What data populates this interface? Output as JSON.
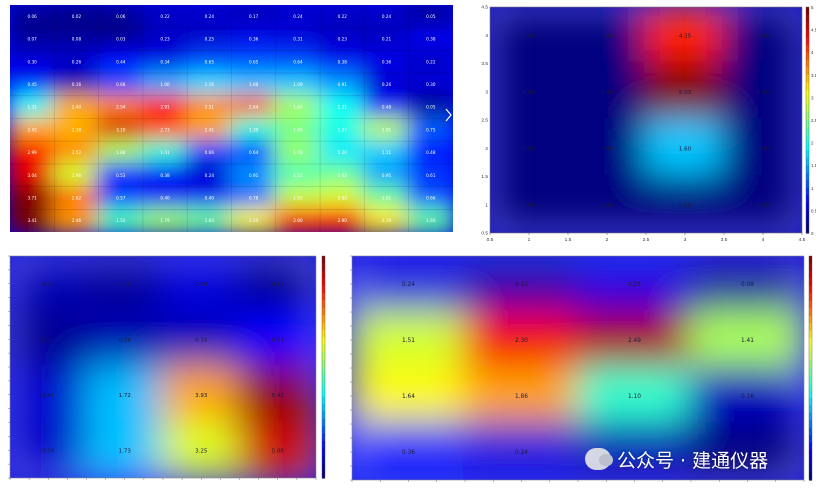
{
  "chart_data": [
    {
      "type": "heatmap",
      "id": "p1",
      "rows": [
        [
          "0.06",
          "0.02",
          "0.06",
          "0.22",
          "0.24",
          "0.17",
          "0.24",
          "0.22",
          "0.24",
          "0.05"
        ],
        [
          "0.07",
          "0.08",
          "0.03",
          "0.23",
          "0.25",
          "0.36",
          "0.31",
          "0.23",
          "0.21",
          "0.38"
        ],
        [
          "0.30",
          "0.26",
          "0.44",
          "0.34",
          "0.65",
          "0.65",
          "0.64",
          "0.38",
          "0.36",
          "0.22"
        ],
        [
          "0.45",
          "0.16",
          "0.68",
          "1.00",
          "1.16",
          "1.08",
          "1.09",
          "0.91",
          "0.26",
          "0.30"
        ],
        [
          "1.31",
          "2.40",
          "2.54",
          "2.91",
          "2.51",
          "2.64",
          "1.84",
          "1.31",
          "0.48",
          "0.05"
        ],
        [
          "2.42",
          "2.38",
          "3.10",
          "2.73",
          "2.41",
          "1.39",
          "1.66",
          "1.37",
          "1.91",
          "0.75"
        ],
        [
          "2.99",
          "2.52",
          "1.84",
          "1.41",
          "0.66",
          "0.64",
          "1.78",
          "1.20",
          "1.11",
          "0.48"
        ],
        [
          "3.04",
          "1.96",
          "0.53",
          "0.38",
          "0.24",
          "0.91",
          "1.52",
          "1.62",
          "0.95",
          "0.61"
        ],
        [
          "3.71",
          "2.62",
          "0.57",
          "0.40",
          "0.40",
          "0.78",
          "1.93",
          "2.00",
          "1.61",
          "0.66"
        ],
        [
          "3.41",
          "2.46",
          "1.52",
          "1.79",
          "1.64",
          "2.14",
          "2.80",
          "2.90",
          "2.19",
          "1.60"
        ]
      ]
    },
    {
      "type": "heatmap",
      "id": "p2",
      "x": [
        1,
        2,
        3,
        4
      ],
      "y": [
        1,
        2,
        3,
        4
      ],
      "values": [
        [
          0,
          0,
          4.25,
          0
        ],
        [
          0,
          0,
          5.03,
          0
        ],
        [
          0,
          0,
          1.6,
          0
        ],
        [
          0,
          0,
          0,
          0
        ]
      ],
      "labels": [
        [
          "0.00",
          "0.00",
          "4.25",
          "0.00"
        ],
        [
          "0.00",
          "0.00",
          "5.03",
          "0.00"
        ],
        [
          "0.00",
          "0.00",
          "1.60",
          "0.00"
        ],
        [
          "0.00",
          "0.00",
          "0.00",
          "0.00"
        ]
      ],
      "xlim": [
        0.5,
        4.5
      ],
      "ylim": [
        0.5,
        4.5
      ],
      "xticks": [
        "0.5",
        "1",
        "1.5",
        "2",
        "2.5",
        "3",
        "3.5",
        "4",
        "4.5"
      ],
      "yticks": [
        "4.5",
        "4",
        "3.5",
        "3",
        "2.5",
        "2",
        "1.5",
        "1",
        "0.5"
      ],
      "colorbar": {
        "ticks": [
          "5",
          "4.5",
          "4",
          "3.5",
          "3",
          "2.5",
          "2",
          "1.5",
          "1",
          "0.5",
          "0"
        ],
        "range": [
          0,
          5
        ]
      }
    },
    {
      "type": "heatmap",
      "id": "p3",
      "values": [
        [
          0.29,
          0.15,
          0.5,
          0.1
        ],
        [
          0.1,
          0.26,
          0.33,
          0.71
        ],
        [
          0.41,
          1.72,
          3.93,
          5.42
        ],
        [
          0.39,
          1.73,
          3.25,
          5.06
        ]
      ],
      "labels": [
        [
          "0.29",
          "0.15",
          "0.50",
          "0.10"
        ],
        [
          "0.10",
          "0.26",
          "0.33",
          "0.71"
        ],
        [
          "0.41",
          "1.72",
          "3.93",
          "5.42"
        ],
        [
          "0.39",
          "1.73",
          "3.25",
          "5.06"
        ]
      ],
      "colorbar": {
        "range": [
          0,
          5.5
        ]
      }
    },
    {
      "type": "heatmap",
      "id": "p4",
      "values": [
        [
          0.24,
          0.12,
          0.25,
          0.08
        ],
        [
          1.51,
          2.3,
          2.49,
          1.41
        ],
        [
          1.64,
          1.86,
          1.1,
          0.16
        ],
        [
          0.36,
          0.24,
          0.13,
          0.0
        ]
      ],
      "labels": [
        [
          "0.24",
          "0.12",
          "0.25",
          "0.08"
        ],
        [
          "1.51",
          "2.30",
          "2.49",
          "1.41"
        ],
        [
          "1.64",
          "1.86",
          "1.10",
          "0.16"
        ],
        [
          "0.36",
          "0.24",
          "",
          ""
        ]
      ],
      "colorbar": {
        "range": [
          0,
          2.6
        ]
      }
    }
  ],
  "watermark": {
    "text": "公众号 · 建通仪器",
    "icon": "wechat-icon"
  }
}
